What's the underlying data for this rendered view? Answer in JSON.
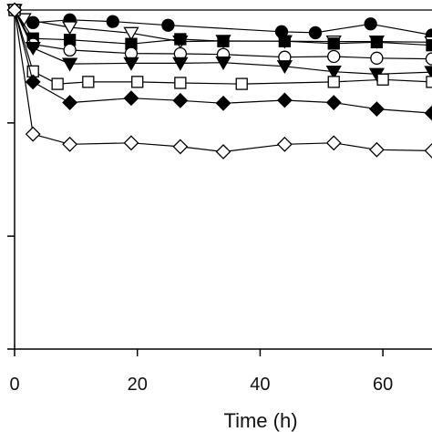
{
  "chart_data": {
    "type": "line",
    "title": "",
    "xlabel": "Time (h)",
    "ylabel": "",
    "xlim": [
      0,
      68
    ],
    "ylim": [
      0,
      100
    ],
    "x_ticks": [
      0,
      20,
      40,
      60
    ],
    "x_tick_labels": [
      "0",
      "20",
      "40",
      "60"
    ],
    "y_ticks": [
      0,
      33.3,
      66.7,
      100
    ],
    "grid": false,
    "legend": "none",
    "series": [
      {
        "marker": "filled-circle",
        "color": "#000000",
        "x": [
          0,
          3,
          9,
          16,
          25,
          43.5,
          49,
          58,
          68
        ],
        "y": [
          100,
          96.3,
          97.1,
          96.6,
          95.5,
          93.6,
          93.3,
          95.9,
          92.6
        ]
      },
      {
        "marker": "open-triangle-down",
        "color": "#000000",
        "x": [
          0,
          1.5,
          9,
          19,
          27,
          34,
          44,
          52,
          59,
          68
        ],
        "y": [
          100,
          97.3,
          94.9,
          93.2,
          90.7,
          90.9,
          90.8,
          90.7,
          90.7,
          90.5
        ]
      },
      {
        "marker": "filled-square",
        "color": "#000000",
        "x": [
          0,
          3,
          9,
          19,
          27,
          34,
          44,
          52,
          59,
          68
        ],
        "y": [
          100,
          91.6,
          91.2,
          90.0,
          91.4,
          90.8,
          90.8,
          90.1,
          90.5,
          89.6
        ]
      },
      {
        "marker": "open-circle",
        "color": "#000000",
        "x": [
          0,
          3,
          9,
          19,
          27,
          34,
          44,
          52,
          59,
          68
        ],
        "y": [
          100,
          89.9,
          88.2,
          87.2,
          87.1,
          86.9,
          86.1,
          86.3,
          85.8,
          85.6
        ]
      },
      {
        "marker": "filled-triangle-down",
        "color": "#000000",
        "x": [
          0,
          3,
          9,
          19,
          27,
          34,
          44,
          52,
          59,
          68
        ],
        "y": [
          100,
          88.8,
          84.1,
          84.3,
          84.3,
          84.5,
          83.4,
          81.8,
          81.1,
          81.7
        ]
      },
      {
        "marker": "open-square",
        "color": "#000000",
        "x": [
          0,
          3,
          7,
          12,
          20,
          27,
          37,
          52,
          60,
          68
        ],
        "y": [
          100,
          81.9,
          78.2,
          78.8,
          78.8,
          78.5,
          78.2,
          78.8,
          79.5,
          78.8
        ]
      },
      {
        "marker": "filled-diamond",
        "color": "#000000",
        "x": [
          0,
          3,
          9,
          19,
          27,
          34,
          44,
          52,
          59,
          68
        ],
        "y": [
          100,
          78.8,
          72.7,
          74.0,
          73.3,
          72.5,
          73.4,
          72.7,
          70.8,
          69.6
        ]
      },
      {
        "marker": "open-diamond",
        "color": "#000000",
        "x": [
          0,
          3,
          9,
          19,
          27,
          34,
          44,
          52,
          59,
          68
        ],
        "y": [
          100,
          63.4,
          60.4,
          60.8,
          59.7,
          58.2,
          60.4,
          60.8,
          58.8,
          58.5
        ]
      }
    ]
  }
}
